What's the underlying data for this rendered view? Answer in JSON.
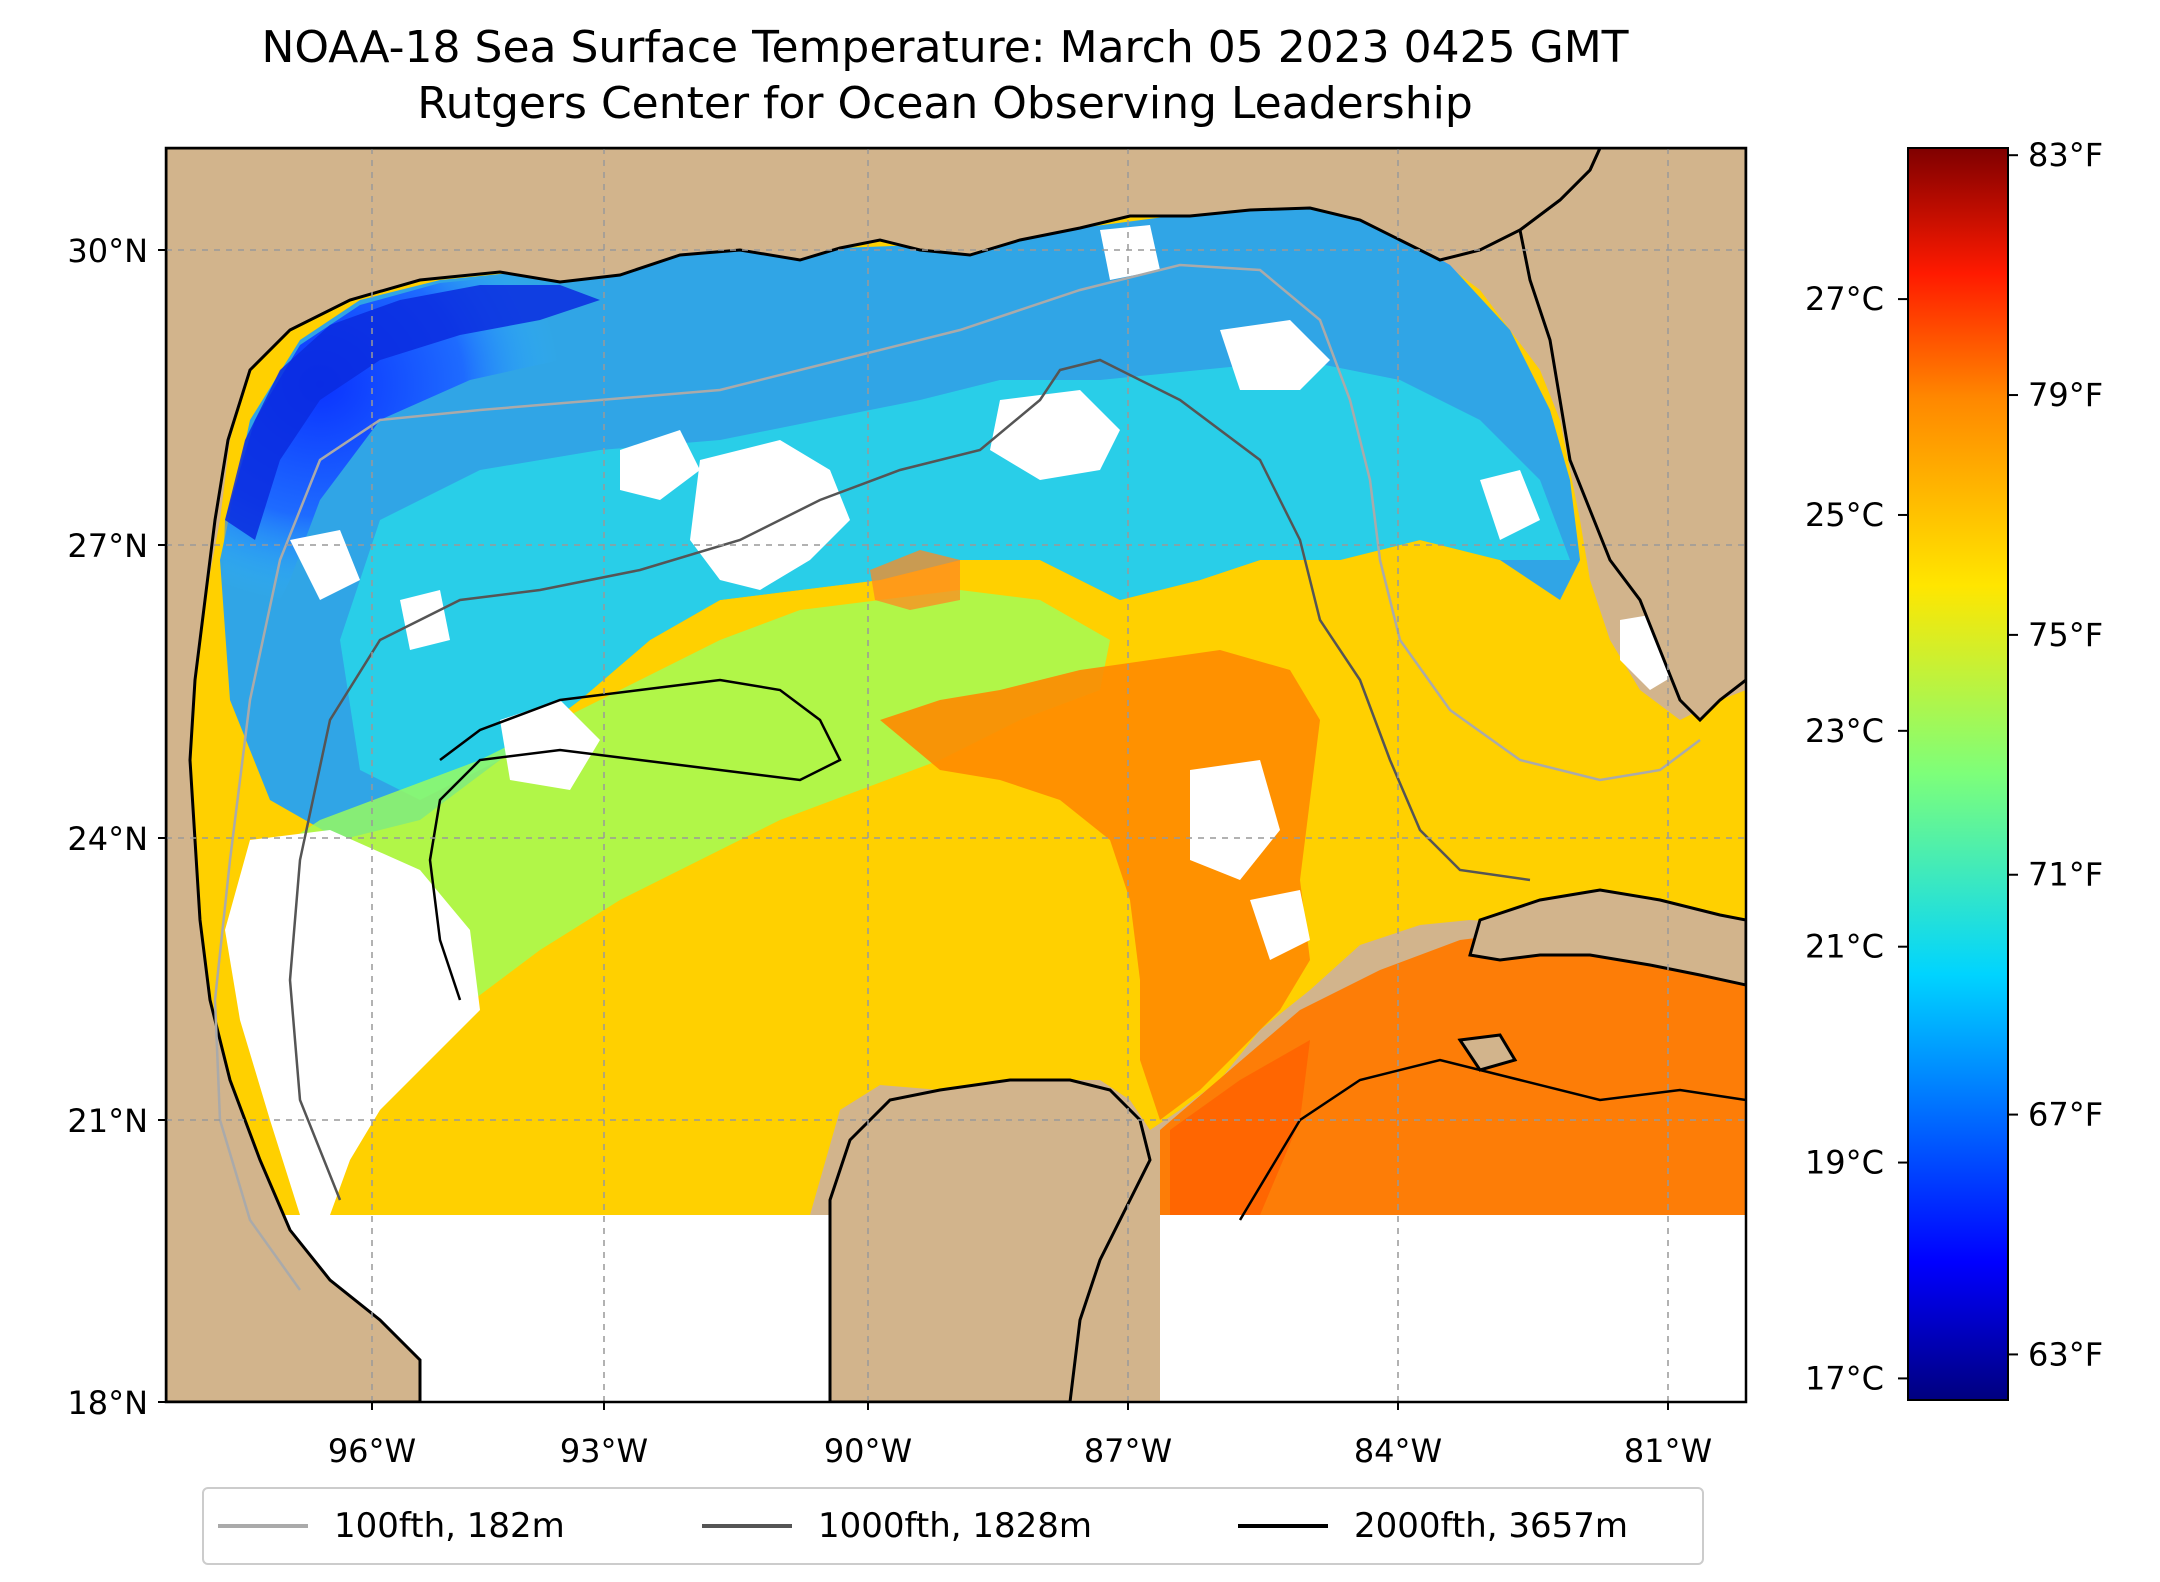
{
  "title": "NOAA-18 Sea Surface Temperature: March 05 2023 0425 GMT",
  "subtitle": "Rutgers Center for Ocean Observing Leadership",
  "map": {
    "lat_range": [
      18,
      31.1
    ],
    "lon_range": [
      -98.3,
      -79.7
    ],
    "lat_ticks": [
      {
        "value": 30,
        "label": "30°N"
      },
      {
        "value": 27,
        "label": "27°N"
      },
      {
        "value": 24,
        "label": "24°N"
      },
      {
        "value": 21,
        "label": "21°N"
      },
      {
        "value": 18,
        "label": "18°N"
      }
    ],
    "lon_ticks": [
      {
        "value": -96,
        "label": "96°W"
      },
      {
        "value": -93,
        "label": "93°W"
      },
      {
        "value": -90,
        "label": "90°W"
      },
      {
        "value": -87,
        "label": "87°W"
      },
      {
        "value": -84,
        "label": "84°W"
      },
      {
        "value": -81,
        "label": "81°W"
      }
    ],
    "grid": "dashed gray",
    "colors": {
      "land": "#d2b48c",
      "no_data": "#ffffff",
      "coast": "#000000"
    }
  },
  "colorbar": {
    "colormap": "jet",
    "range_c": [
      16.8,
      28.4
    ],
    "celsius_ticks": [
      "27°C",
      "25°C",
      "23°C",
      "21°C",
      "19°C",
      "17°C"
    ],
    "celsius_values": [
      27,
      25,
      23,
      21,
      19,
      17
    ],
    "fahrenheit_ticks": [
      "83°F",
      "79°F",
      "75°F",
      "71°F",
      "67°F",
      "63°F"
    ],
    "fahrenheit_values": [
      83,
      79,
      75,
      71,
      67,
      63
    ]
  },
  "legend": {
    "position": "below map",
    "items": [
      {
        "label": "100fth, 182m",
        "color": "#aaaaaa"
      },
      {
        "label": "1000fth, 1828m",
        "color": "#555555"
      },
      {
        "label": "2000fth, 3657m",
        "color": "#000000"
      }
    ]
  }
}
